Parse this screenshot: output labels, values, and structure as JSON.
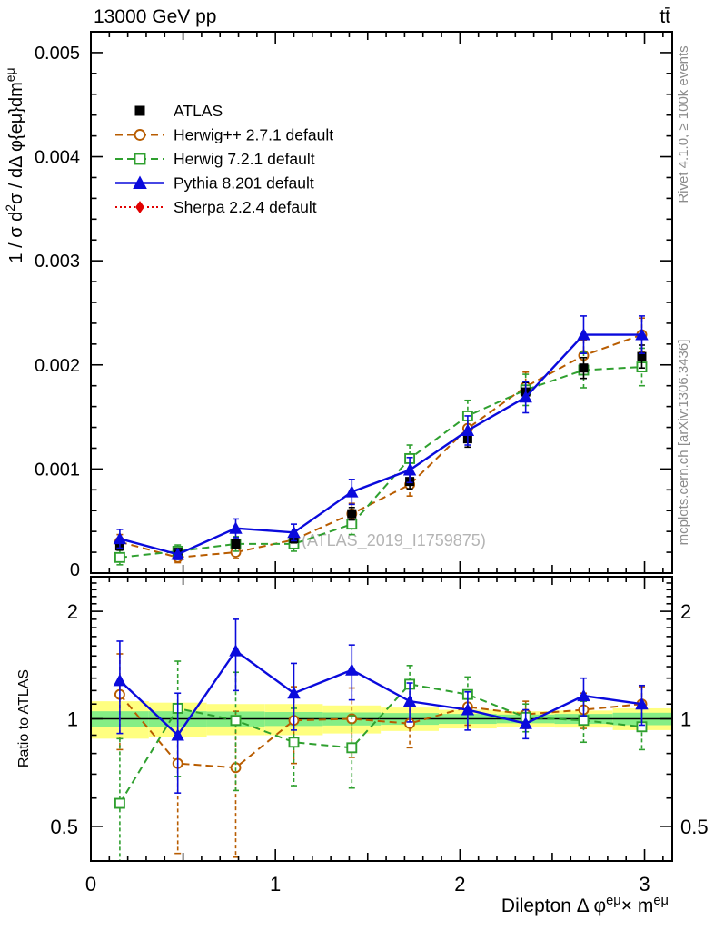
{
  "header": {
    "left_label": "13000 GeV pp",
    "right_label": "tt̄"
  },
  "side_notes": {
    "rivet": "Rivet 4.1.0, ≥ 100k events",
    "mcplots": "mcplots.cern.ch [arXiv:1306.3436]"
  },
  "watermark": "(ATLAS_2019_I1759875)",
  "axes": {
    "main_ylabel_rich": "1 / σ d^{2}σ / dΔ φ{eμ}dm^{eμ}",
    "main_ylabel": "1 / σ d²σ / dΔ φ{eμ}dm^eμ",
    "ratio_ylabel": "Ratio to ATLAS",
    "xlabel_rich": "Dilepton Δ φ^{eμ}× m^{eμ}",
    "xlabel": "Dilepton Δ φ^eμ × m^eμ",
    "x_tick_labels": [
      "0",
      "1",
      "2",
      "3"
    ],
    "main_y_tick_labels": [
      "0",
      "0.001",
      "0.002",
      "0.003",
      "0.004",
      "0.005"
    ],
    "ratio_y_tick_labels": [
      "0.5",
      "1",
      "2"
    ]
  },
  "legend": [
    {
      "key": "atlas",
      "label": "ATLAS",
      "color": "#000000",
      "marker": "square-filled",
      "line": "none"
    },
    {
      "key": "herwigpp",
      "label": "Herwig++ 2.7.1 default",
      "color": "#b85c00",
      "marker": "circle-open",
      "line": "dashed"
    },
    {
      "key": "herwig7",
      "label": "Herwig 7.2.1 default",
      "color": "#2fa02f",
      "marker": "square-open",
      "line": "dashed"
    },
    {
      "key": "pythia",
      "label": "Pythia 8.201 default",
      "color": "#0a0adc",
      "marker": "triangle-filled",
      "line": "solid"
    },
    {
      "key": "sherpa",
      "label": "Sherpa 2.2.4 default",
      "color": "#e10000",
      "marker": "diamond-filled",
      "line": "dotted"
    }
  ],
  "band_colors": {
    "outer": "#ffff80",
    "inner": "#85ee85"
  },
  "chart_data": {
    "type": "line",
    "xlabel": "Dilepton Δ φ^eμ × m^eμ",
    "ylabel": "1 / σ d²σ / dΔ φ{eμ}dm^eμ",
    "x": [
      0.157,
      0.471,
      0.785,
      1.1,
      1.414,
      1.728,
      2.042,
      2.356,
      2.67,
      2.985
    ],
    "bin_half_width": 0.157,
    "xlim": [
      0,
      3.15
    ],
    "main": {
      "ylim": [
        0,
        0.0052
      ],
      "yticks": [
        0,
        0.001,
        0.002,
        0.003,
        0.004,
        0.005
      ],
      "series": [
        {
          "key": "atlas",
          "name": "ATLAS",
          "values": [
            0.00026,
            0.0002,
            0.00028,
            0.00033,
            0.00057,
            0.00088,
            0.00129,
            0.00174,
            0.00197,
            0.00208
          ],
          "errors": [
            4e-05,
            3e-05,
            4e-05,
            4e-05,
            6e-05,
            7e-05,
            8e-05,
            9e-05,
            0.0001,
            0.00011
          ]
        },
        {
          "key": "herwigpp",
          "name": "Herwig++ 2.7.1 default",
          "values": [
            0.0003,
            0.00015,
            0.0002,
            0.00032,
            0.00057,
            0.00085,
            0.00139,
            0.00179,
            0.00209,
            0.00229
          ],
          "errors": [
            7e-05,
            5e-05,
            6e-05,
            7e-05,
            0.0001,
            0.00011,
            0.00013,
            0.00014,
            0.00015,
            0.00016
          ]
        },
        {
          "key": "herwig7",
          "name": "Herwig 7.2.1 default",
          "values": [
            0.00015,
            0.00021,
            0.00028,
            0.00028,
            0.00047,
            0.0011,
            0.00151,
            0.00176,
            0.00195,
            0.00198
          ],
          "errors": [
            7e-05,
            6e-05,
            7e-05,
            7e-05,
            0.0001,
            0.00013,
            0.00015,
            0.00015,
            0.00017,
            0.00018
          ]
        },
        {
          "key": "pythia",
          "name": "Pythia 8.201 default",
          "values": [
            0.00033,
            0.00018,
            0.00043,
            0.00039,
            0.00078,
            0.00099,
            0.00137,
            0.00169,
            0.00229,
            0.00229
          ],
          "errors": [
            9e-05,
            5e-05,
            9e-05,
            8e-05,
            0.00012,
            0.00012,
            0.00014,
            0.00015,
            0.00018,
            0.00018
          ]
        },
        {
          "key": "sherpa",
          "name": "Sherpa 2.2.4 default",
          "values": [],
          "errors": []
        }
      ]
    },
    "ratio": {
      "ylim": [
        0.4,
        2.5
      ],
      "yscale": "log",
      "yticks": [
        0.5,
        1,
        2
      ],
      "reference": 1,
      "series": [
        {
          "key": "herwigpp",
          "name": "Herwig++ 2.7.1 default",
          "values": [
            1.17,
            0.75,
            0.73,
            0.99,
            1.0,
            0.97,
            1.08,
            1.03,
            1.06,
            1.1
          ],
          "errors": [
            0.35,
            0.33,
            0.32,
            0.24,
            0.22,
            0.14,
            0.12,
            0.09,
            0.12,
            0.13
          ]
        },
        {
          "key": "herwig7",
          "name": "Herwig 7.2.1 default",
          "values": [
            0.58,
            1.07,
            0.99,
            0.86,
            0.83,
            1.25,
            1.17,
            1.01,
            0.99,
            0.95
          ],
          "errors": [
            0.3,
            0.38,
            0.36,
            0.21,
            0.19,
            0.16,
            0.14,
            0.09,
            0.13,
            0.13
          ]
        },
        {
          "key": "pythia",
          "name": "Pythia 8.201 default",
          "values": [
            1.28,
            0.9,
            1.55,
            1.18,
            1.37,
            1.12,
            1.06,
            0.97,
            1.16,
            1.1
          ],
          "errors": [
            0.37,
            0.28,
            0.35,
            0.25,
            0.24,
            0.14,
            0.13,
            0.09,
            0.14,
            0.14
          ]
        },
        {
          "key": "sherpa",
          "name": "Sherpa 2.2.4 default",
          "values": [],
          "errors": []
        }
      ],
      "bands": {
        "outer_half_widths": [
          0.12,
          0.11,
          0.1,
          0.1,
          0.09,
          0.075,
          0.06,
          0.05,
          0.055,
          0.07
        ],
        "inner_half_widths": [
          0.05,
          0.05,
          0.048,
          0.045,
          0.042,
          0.038,
          0.032,
          0.028,
          0.032,
          0.04
        ]
      }
    }
  }
}
